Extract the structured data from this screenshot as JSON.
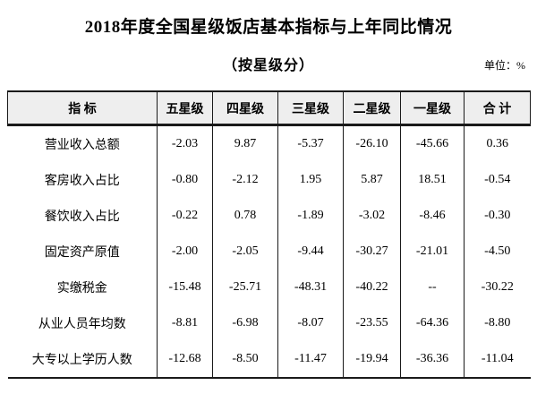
{
  "page": {
    "title": "2018年度全国星级饭店基本指标与上年同比情况",
    "subtitle": "（按星级分）",
    "unit_label": "单位：%"
  },
  "table": {
    "columns": [
      "指 标",
      "五星级",
      "四星级",
      "三星级",
      "二星级",
      "一星级",
      "合 计"
    ],
    "rows": [
      {
        "label": "营业收入总额",
        "values": [
          "-2.03",
          "9.87",
          "-5.37",
          "-26.10",
          "-45.66",
          "0.36"
        ]
      },
      {
        "label": "客房收入占比",
        "values": [
          "-0.80",
          "-2.12",
          "1.95",
          "5.87",
          "18.51",
          "-0.54"
        ]
      },
      {
        "label": "餐饮收入占比",
        "values": [
          "-0.22",
          "0.78",
          "-1.89",
          "-3.02",
          "-8.46",
          "-0.30"
        ]
      },
      {
        "label": "固定资产原值",
        "values": [
          "-2.00",
          "-2.05",
          "-9.44",
          "-30.27",
          "-21.01",
          "-4.50"
        ]
      },
      {
        "label": "实缴税金",
        "values": [
          "-15.48",
          "-25.71",
          "-48.31",
          "-40.22",
          "--",
          "-30.22"
        ]
      },
      {
        "label": "从业人员年均数",
        "values": [
          "-8.81",
          "-6.98",
          "-8.07",
          "-23.55",
          "-64.36",
          "-8.80"
        ]
      },
      {
        "label": "大专以上学历人数",
        "values": [
          "-12.68",
          "-8.50",
          "-11.47",
          "-19.94",
          "-36.36",
          "-11.04"
        ]
      }
    ]
  },
  "chart_data": {
    "type": "table",
    "title": "2018年度全国星级饭店基本指标与上年同比情况",
    "subtitle": "（按星级分）",
    "unit": "%",
    "categories": [
      "五星级",
      "四星级",
      "三星级",
      "二星级",
      "一星级",
      "合计"
    ],
    "series": [
      {
        "name": "营业收入总额",
        "values": [
          -2.03,
          9.87,
          -5.37,
          -26.1,
          -45.66,
          0.36
        ]
      },
      {
        "name": "客房收入占比",
        "values": [
          -0.8,
          -2.12,
          1.95,
          5.87,
          18.51,
          -0.54
        ]
      },
      {
        "name": "餐饮收入占比",
        "values": [
          -0.22,
          0.78,
          -1.89,
          -3.02,
          -8.46,
          -0.3
        ]
      },
      {
        "name": "固定资产原值",
        "values": [
          -2.0,
          -2.05,
          -9.44,
          -30.27,
          -21.01,
          -4.5
        ]
      },
      {
        "name": "实缴税金",
        "values": [
          -15.48,
          -25.71,
          -48.31,
          -40.22,
          null,
          -30.22
        ]
      },
      {
        "name": "从业人员年均数",
        "values": [
          -8.81,
          -6.98,
          -8.07,
          -23.55,
          -64.36,
          -8.8
        ]
      },
      {
        "name": "大专以上学历人数",
        "values": [
          -12.68,
          -8.5,
          -11.47,
          -19.94,
          -36.36,
          -11.04
        ]
      }
    ],
    "missing_value_display": "--",
    "colors": {
      "header_background": "#eeeeee",
      "border": "#1a1a1a",
      "text": "#000000"
    }
  }
}
